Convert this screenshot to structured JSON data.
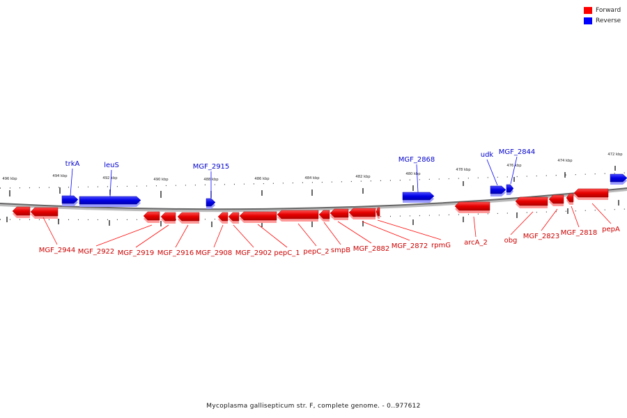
{
  "legend": {
    "forward_label": "Forward",
    "reverse_label": "Reverse",
    "forward_color": "#ff0000",
    "reverse_color": "#0000ff"
  },
  "caption": "Mycoplasma gallisepticum str. F, complete genome. - 0..977612",
  "ticks": [
    "496 kbp",
    "494 kbp",
    "492 kbp",
    "490 kbp",
    "488 kbp",
    "486 kbp",
    "484 kbp",
    "482 kbp",
    "480 kbp",
    "478 kbp",
    "476 kbp",
    "474 kbp",
    "472 kbp"
  ],
  "reverse_genes": [
    "trkA",
    "leuS",
    "MGF_2915",
    "MGF_2868",
    "udk",
    "MGF_2844"
  ],
  "forward_genes": [
    "MGF_2944",
    "MGF_2922",
    "MGF_2919",
    "MGF_2916",
    "MGF_2908",
    "MGF_2902",
    "pepC_1",
    "pepC_2",
    "smpB",
    "MGF_2882",
    "MGF_2872",
    "rpmG",
    "arcA_2",
    "obg",
    "MGF_2823",
    "MGF_2818",
    "pepA"
  ]
}
